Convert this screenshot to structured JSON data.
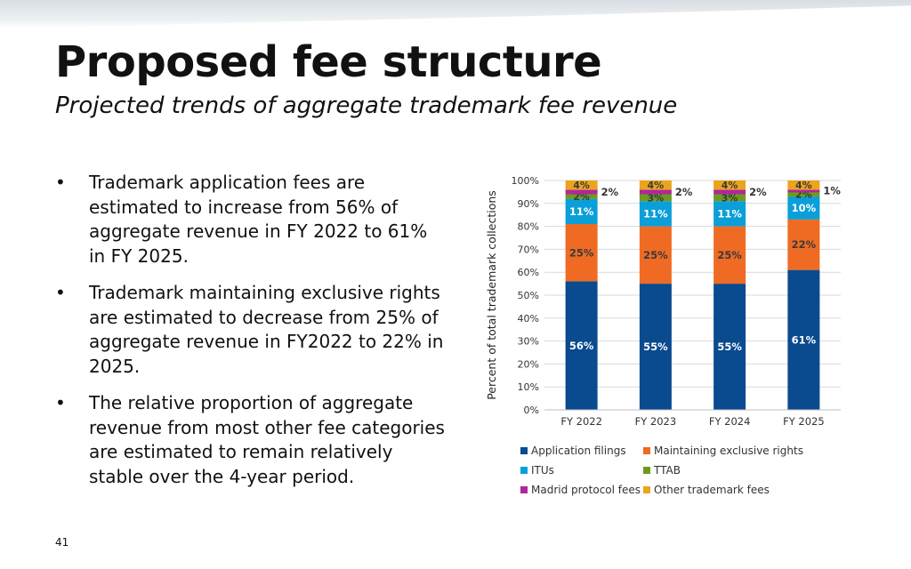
{
  "slide": {
    "title": "Proposed fee structure",
    "subtitle": "Projected trends of aggregate trademark fee revenue",
    "page_number": "41",
    "bullets": [
      "Trademark application fees are estimated to increase from 56% of aggregate revenue in FY 2022 to 61% in FY 2025.",
      "Trademark maintaining exclusive rights are estimated to decrease from 25% of aggregate revenue in FY2022 to 22% in 2025.",
      "The relative proportion of aggregate revenue from most other fee categories are estimated to remain relatively stable over the 4-year period."
    ],
    "bullet_symbol": "•"
  },
  "chart_data": {
    "type": "bar",
    "stacked": true,
    "ylabel": "Percent of total trademark collections",
    "ylim": [
      0,
      100
    ],
    "yticks": [
      "0%",
      "10%",
      "20%",
      "30%",
      "40%",
      "50%",
      "60%",
      "70%",
      "80%",
      "90%",
      "100%"
    ],
    "categories": [
      "FY 2022",
      "FY 2023",
      "FY 2024",
      "FY 2025"
    ],
    "series": [
      {
        "name": "Application filings",
        "color": "#0a4a8f",
        "values": [
          56,
          55,
          55,
          61
        ],
        "labels": [
          "56%",
          "55%",
          "55%",
          "61%"
        ]
      },
      {
        "name": "Maintaining exclusive rights",
        "color": "#ef6b23",
        "values": [
          25,
          25,
          25,
          22
        ],
        "labels": [
          "25%",
          "25%",
          "25%",
          "22%"
        ]
      },
      {
        "name": "ITUs",
        "color": "#0a9fd8",
        "values": [
          11,
          11,
          11,
          10
        ],
        "labels": [
          "11%",
          "11%",
          "11%",
          "10%"
        ]
      },
      {
        "name": "TTAB",
        "color": "#6f9a1f",
        "values": [
          2,
          3,
          3,
          2
        ],
        "labels": [
          "2%",
          "3%",
          "3%",
          "2%"
        ]
      },
      {
        "name": "Madrid protocol fees",
        "color": "#b0279b",
        "values": [
          2,
          2,
          2,
          1
        ],
        "labels": [
          "2%",
          "2%",
          "2%",
          "1%"
        ]
      },
      {
        "name": "Other trademark fees",
        "color": "#eca41a",
        "values": [
          4,
          4,
          4,
          4
        ],
        "labels": [
          "4%",
          "4%",
          "4%",
          "4%"
        ]
      }
    ],
    "grid": true,
    "legend_position": "bottom"
  }
}
